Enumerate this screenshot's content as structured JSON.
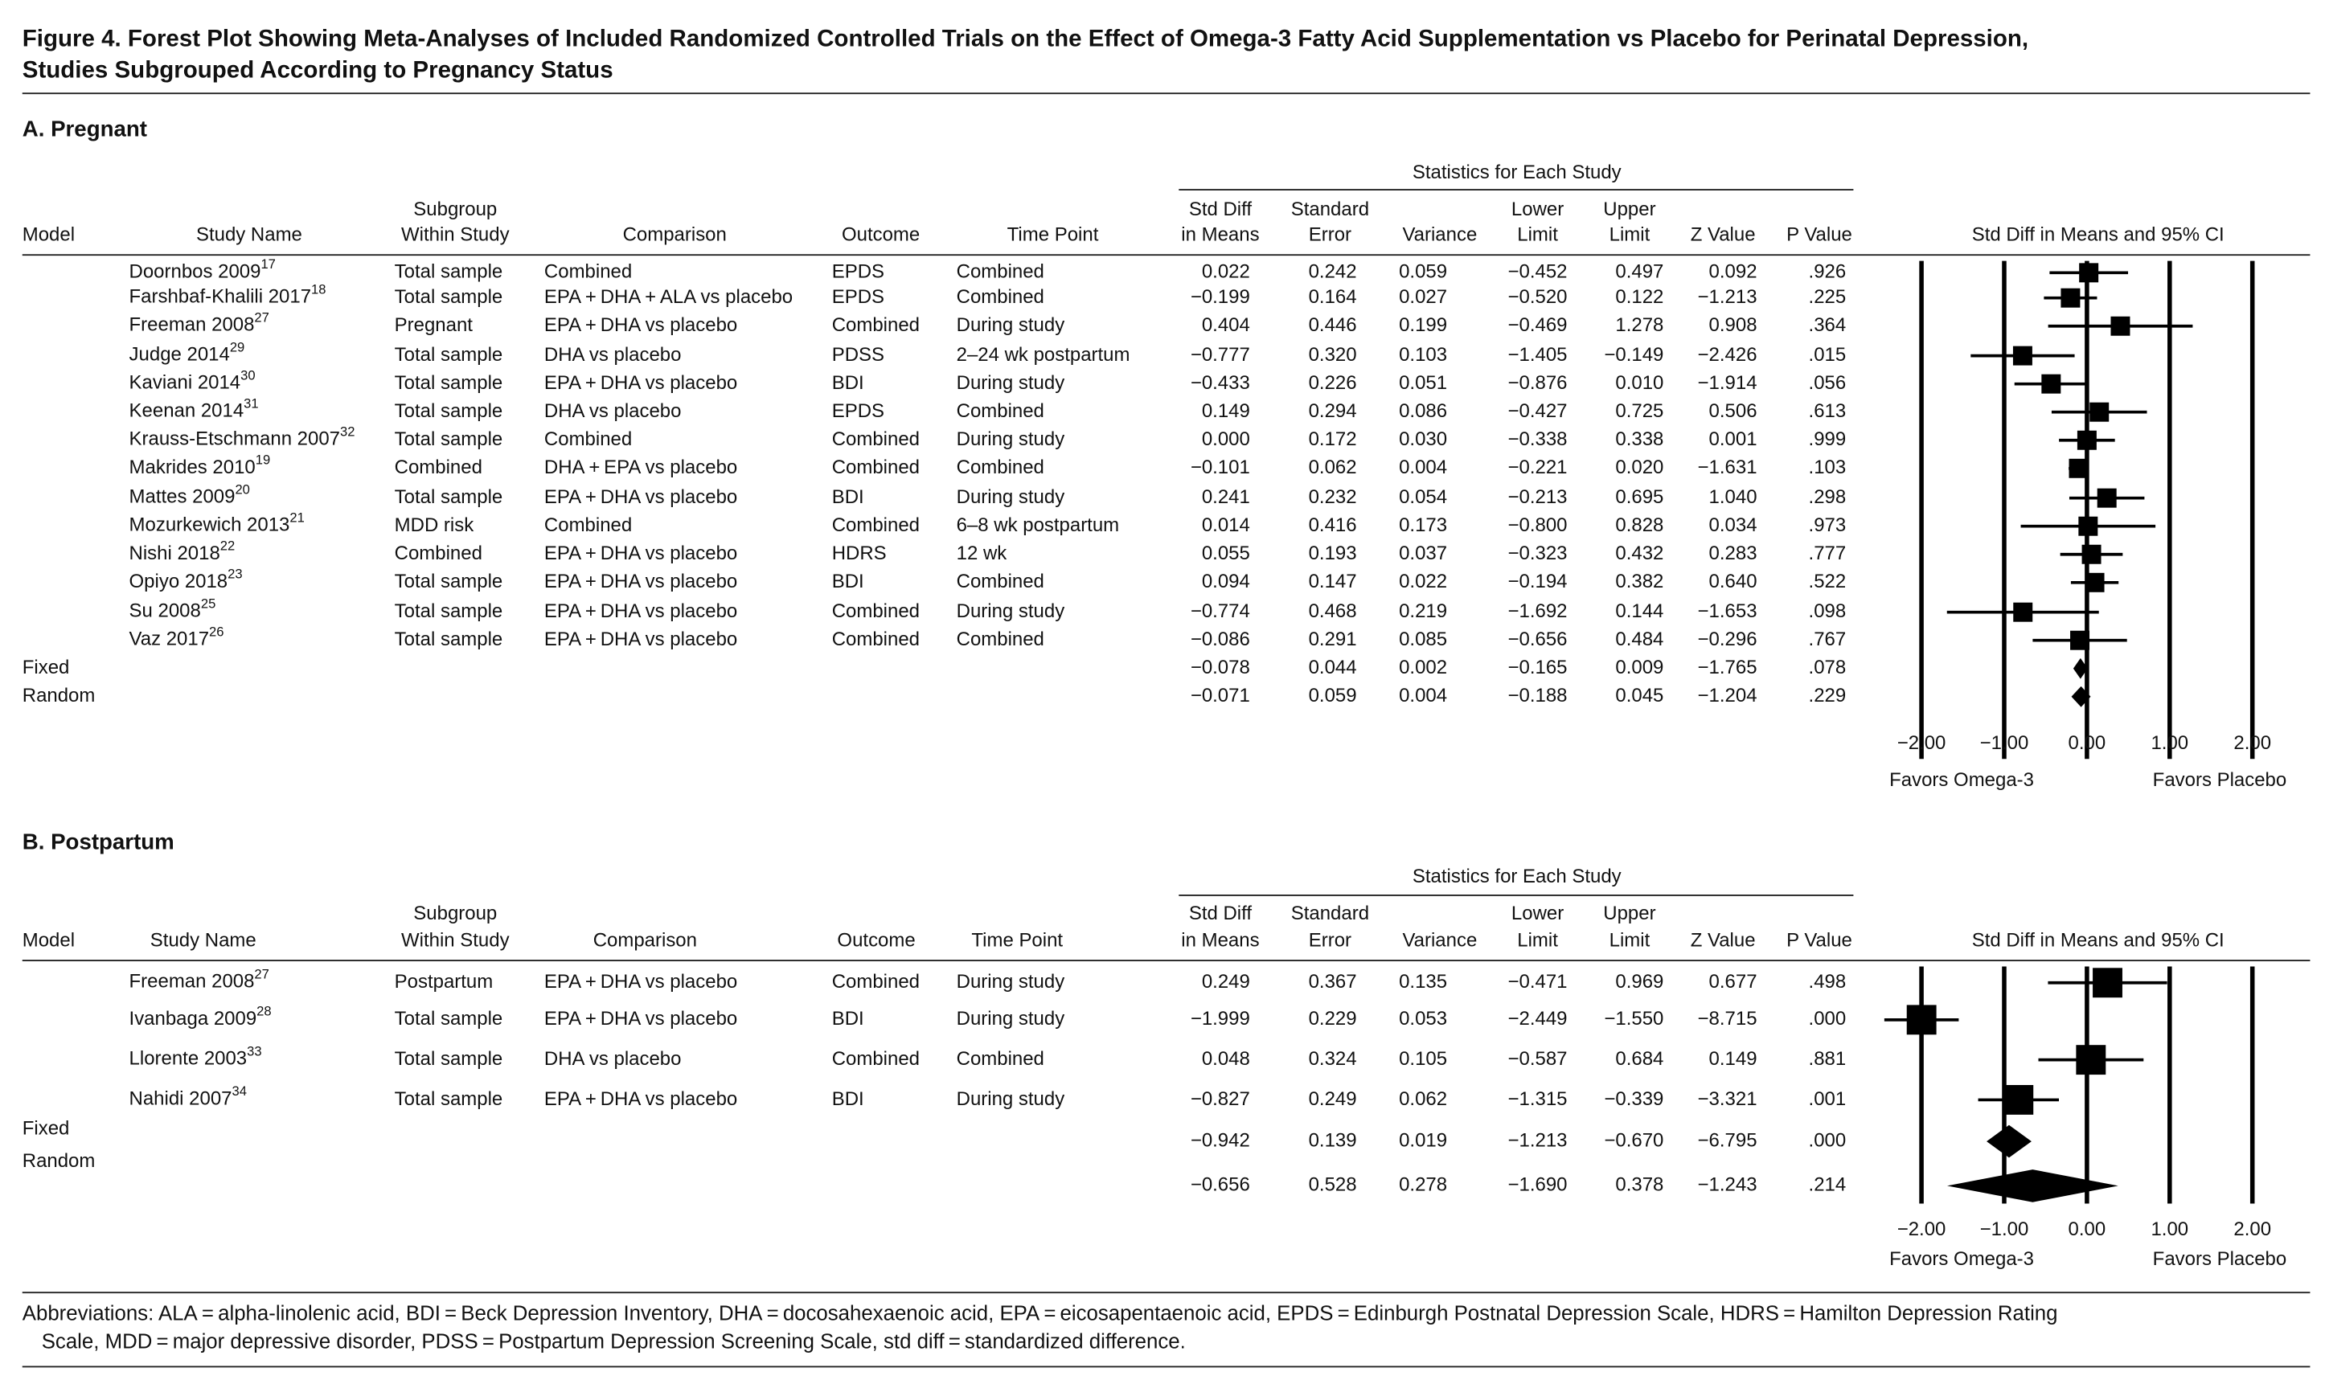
{
  "figure_title": [
    "Figure 4. Forest Plot Showing Meta-Analyses of Included Randomized Controlled Trials on the Effect of Omega-3 Fatty Acid Supplementation vs Placebo for Perinatal Depression,",
    "Studies Subgrouped According to Pregnancy Status"
  ],
  "chart_data": [
    {
      "type": "forest",
      "title": "A. Pregnant",
      "group_header": "Statistics for Each Study",
      "columns": [
        [
          "Model"
        ],
        [
          "Study Name"
        ],
        [
          "Subgroup",
          "Within Study"
        ],
        [
          "Comparison"
        ],
        [
          "Outcome"
        ],
        [
          "Time Point"
        ],
        [
          "Std Diff",
          "in Means"
        ],
        [
          "Standard",
          "Error"
        ],
        [
          "Variance"
        ],
        [
          "Lower",
          "Limit"
        ],
        [
          "Upper",
          "Limit"
        ],
        [
          "Z Value"
        ],
        [
          "P Value"
        ]
      ],
      "plot_header": "Std Diff in Means and 95% CI",
      "rows": [
        {
          "study": "Doornbos 2009",
          "ref": "17",
          "subgroup": "Total sample",
          "comparison": "Combined",
          "outcome": "EPDS",
          "time_point": "Combined",
          "cells": [
            "0.022",
            "0.242",
            "0.059",
            "−0.452",
            "0.497",
            "0.092",
            ".926"
          ],
          "std_diff": 0.022,
          "lower": -0.452,
          "upper": 0.497
        },
        {
          "study": "Farshbaf-Khalili 2017",
          "ref": "18",
          "subgroup": "Total sample",
          "comparison": "EPA + DHA + ALA vs placebo",
          "outcome": "EPDS",
          "time_point": "Combined",
          "cells": [
            "−0.199",
            "0.164",
            "0.027",
            "−0.520",
            "0.122",
            "−1.213",
            ".225"
          ],
          "std_diff": -0.199,
          "lower": -0.52,
          "upper": 0.122
        },
        {
          "study": "Freeman 2008",
          "ref": "27",
          "subgroup": "Pregnant",
          "comparison": "EPA + DHA vs placebo",
          "outcome": "Combined",
          "time_point": "During study",
          "cells": [
            "0.404",
            "0.446",
            "0.199",
            "−0.469",
            "1.278",
            "0.908",
            ".364"
          ],
          "std_diff": 0.404,
          "lower": -0.469,
          "upper": 1.278
        },
        {
          "study": "Judge 2014",
          "ref": "29",
          "subgroup": "Total sample",
          "comparison": "DHA vs placebo",
          "outcome": "PDSS",
          "time_point": "2–24 wk postpartum",
          "cells": [
            "−0.777",
            "0.320",
            "0.103",
            "−1.405",
            "−0.149",
            "−2.426",
            ".015"
          ],
          "std_diff": -0.777,
          "lower": -1.405,
          "upper": -0.149
        },
        {
          "study": "Kaviani 2014",
          "ref": "30",
          "subgroup": "Total sample",
          "comparison": "EPA + DHA vs placebo",
          "outcome": "BDI",
          "time_point": "During study",
          "cells": [
            "−0.433",
            "0.226",
            "0.051",
            "−0.876",
            "0.010",
            "−1.914",
            ".056"
          ],
          "std_diff": -0.433,
          "lower": -0.876,
          "upper": 0.01
        },
        {
          "study": "Keenan 2014",
          "ref": "31",
          "subgroup": "Total sample",
          "comparison": "DHA vs placebo",
          "outcome": "EPDS",
          "time_point": "Combined",
          "cells": [
            "0.149",
            "0.294",
            "0.086",
            "−0.427",
            "0.725",
            "0.506",
            ".613"
          ],
          "std_diff": 0.149,
          "lower": -0.427,
          "upper": 0.725
        },
        {
          "study": "Krauss-Etschmann 2007",
          "ref": "32",
          "subgroup": "Total sample",
          "comparison": "Combined",
          "outcome": "Combined",
          "time_point": "During study",
          "cells": [
            "0.000",
            "0.172",
            "0.030",
            "−0.338",
            "0.338",
            "0.001",
            ".999"
          ],
          "std_diff": 0.0,
          "lower": -0.338,
          "upper": 0.338
        },
        {
          "study": "Makrides 2010",
          "ref": "19",
          "subgroup": "Combined",
          "comparison": "DHA + EPA vs placebo",
          "outcome": "Combined",
          "time_point": "Combined",
          "cells": [
            "−0.101",
            "0.062",
            "0.004",
            "−0.221",
            "0.020",
            "−1.631",
            ".103"
          ],
          "std_diff": -0.101,
          "lower": -0.221,
          "upper": 0.02
        },
        {
          "study": "Mattes 2009",
          "ref": "20",
          "subgroup": "Total sample",
          "comparison": "EPA + DHA vs placebo",
          "outcome": "BDI",
          "time_point": "During study",
          "cells": [
            "0.241",
            "0.232",
            "0.054",
            "−0.213",
            "0.695",
            "1.040",
            ".298"
          ],
          "std_diff": 0.241,
          "lower": -0.213,
          "upper": 0.695
        },
        {
          "study": "Mozurkewich 2013",
          "ref": "21",
          "subgroup": "MDD risk",
          "comparison": "Combined",
          "outcome": "Combined",
          "time_point": "6–8 wk postpartum",
          "cells": [
            "0.014",
            "0.416",
            "0.173",
            "−0.800",
            "0.828",
            "0.034",
            ".973"
          ],
          "std_diff": 0.014,
          "lower": -0.8,
          "upper": 0.828
        },
        {
          "study": "Nishi 2018",
          "ref": "22",
          "subgroup": "Combined",
          "comparison": "EPA + DHA vs placebo",
          "outcome": "HDRS",
          "time_point": "12 wk",
          "cells": [
            "0.055",
            "0.193",
            "0.037",
            "−0.323",
            "0.432",
            "0.283",
            ".777"
          ],
          "std_diff": 0.055,
          "lower": -0.323,
          "upper": 0.432
        },
        {
          "study": "Opiyo 2018",
          "ref": "23",
          "subgroup": "Total sample",
          "comparison": "EPA + DHA vs placebo",
          "outcome": "BDI",
          "time_point": "Combined",
          "cells": [
            "0.094",
            "0.147",
            "0.022",
            "−0.194",
            "0.382",
            "0.640",
            ".522"
          ],
          "std_diff": 0.094,
          "lower": -0.194,
          "upper": 0.382
        },
        {
          "study": "Su 2008",
          "ref": "25",
          "subgroup": "Total sample",
          "comparison": "EPA + DHA vs placebo",
          "outcome": "Combined",
          "time_point": "During study",
          "cells": [
            "−0.774",
            "0.468",
            "0.219",
            "−1.692",
            "0.144",
            "−1.653",
            ".098"
          ],
          "std_diff": -0.774,
          "lower": -1.692,
          "upper": 0.144
        },
        {
          "study": "Vaz 2017",
          "ref": "26",
          "subgroup": "Total sample",
          "comparison": "EPA + DHA vs placebo",
          "outcome": "Combined",
          "time_point": "Combined",
          "cells": [
            "−0.086",
            "0.291",
            "0.085",
            "−0.656",
            "0.484",
            "−0.296",
            ".767"
          ],
          "std_diff": -0.086,
          "lower": -0.656,
          "upper": 0.484
        },
        {
          "model": "Fixed",
          "cells": [
            "−0.078",
            "0.044",
            "0.002",
            "−0.165",
            "0.009",
            "−1.765",
            ".078"
          ],
          "std_diff": -0.078,
          "lower": -0.165,
          "upper": 0.009
        },
        {
          "model": "Random",
          "cells": [
            "−0.071",
            "0.059",
            "0.004",
            "−0.188",
            "0.045",
            "−1.204",
            ".229"
          ],
          "std_diff": -0.071,
          "lower": -0.188,
          "upper": 0.045
        }
      ],
      "xlim": [
        -2.5,
        2.5
      ],
      "xticks": [
        {
          "value": -2,
          "label": "−2.00"
        },
        {
          "value": -1,
          "label": "−1.00"
        },
        {
          "value": 0,
          "label": "0.00"
        },
        {
          "value": 1,
          "label": "1.00"
        },
        {
          "value": 2,
          "label": "2.00"
        }
      ],
      "favors": [
        "Favors Omega-3",
        "Favors Placebo"
      ],
      "color": "#000000"
    },
    {
      "type": "forest",
      "title": "B. Postpartum",
      "group_header": "Statistics for Each Study",
      "columns": [
        [
          "Model"
        ],
        [
          "Study Name"
        ],
        [
          "Subgroup",
          "Within Study"
        ],
        [
          "Comparison"
        ],
        [
          "Outcome"
        ],
        [
          "Time Point"
        ],
        [
          "Std Diff",
          "in Means"
        ],
        [
          "Standard",
          "Error"
        ],
        [
          "Variance"
        ],
        [
          "Lower",
          "Limit"
        ],
        [
          "Upper",
          "Limit"
        ],
        [
          "Z Value"
        ],
        [
          "P Value"
        ]
      ],
      "plot_header": "Std Diff in Means and 95% CI",
      "rows": [
        {
          "study": "Freeman 2008",
          "ref": "27",
          "subgroup": "Postpartum",
          "comparison": "EPA + DHA vs placebo",
          "outcome": "Combined",
          "time_point": "During study",
          "cells": [
            "0.249",
            "0.367",
            "0.135",
            "−0.471",
            "0.969",
            "0.677",
            ".498"
          ],
          "std_diff": 0.249,
          "lower": -0.471,
          "upper": 0.969
        },
        {
          "study": "Ivanbaga 2009",
          "ref": "28",
          "subgroup": "Total sample",
          "comparison": "EPA + DHA vs placebo",
          "outcome": "BDI",
          "time_point": "During study",
          "cells": [
            "−1.999",
            "0.229",
            "0.053",
            "−2.449",
            "−1.550",
            "−8.715",
            ".000"
          ],
          "std_diff": -1.999,
          "lower": -2.449,
          "upper": -1.55
        },
        {
          "study": "Llorente 2003",
          "ref": "33",
          "subgroup": "Total sample",
          "comparison": "DHA vs placebo",
          "outcome": "Combined",
          "time_point": "Combined",
          "cells": [
            "0.048",
            "0.324",
            "0.105",
            "−0.587",
            "0.684",
            "0.149",
            ".881"
          ],
          "std_diff": 0.048,
          "lower": -0.587,
          "upper": 0.684
        },
        {
          "study": "Nahidi 2007",
          "ref": "34",
          "subgroup": "Total sample",
          "comparison": "EPA + DHA vs placebo",
          "outcome": "BDI",
          "time_point": "During study",
          "cells": [
            "−0.827",
            "0.249",
            "0.062",
            "−1.315",
            "−0.339",
            "−3.321",
            ".001"
          ],
          "std_diff": -0.827,
          "lower": -1.315,
          "upper": -0.339
        },
        {
          "model": "Fixed",
          "cells": [
            "−0.942",
            "0.139",
            "0.019",
            "−1.213",
            "−0.670",
            "−6.795",
            ".000"
          ],
          "std_diff": -0.942,
          "lower": -1.213,
          "upper": -0.67
        },
        {
          "model": "Random",
          "cells": [
            "−0.656",
            "0.528",
            "0.278",
            "−1.690",
            "0.378",
            "−1.243",
            ".214"
          ],
          "std_diff": -0.656,
          "lower": -1.69,
          "upper": 0.378
        }
      ],
      "xlim": [
        -2.5,
        2.5
      ],
      "xticks": [
        {
          "value": -2,
          "label": "−2.00"
        },
        {
          "value": -1,
          "label": "−1.00"
        },
        {
          "value": 0,
          "label": "0.00"
        },
        {
          "value": 1,
          "label": "1.00"
        },
        {
          "value": 2,
          "label": "2.00"
        }
      ],
      "favors": [
        "Favors Omega-3",
        "Favors Placebo"
      ],
      "color": "#000000"
    }
  ],
  "abbreviations": [
    "Abbreviations: ALA = alpha-linolenic acid, BDI = Beck Depression Inventory, DHA = docosahexaenoic acid, EPA = eicosapentaenoic acid, EPDS = Edinburgh Postnatal Depression Scale, HDRS = Hamilton Depression Rating",
    "Scale, MDD = major depressive disorder, PDSS = Postpartum Depression Screening Scale, std diff = standardized difference."
  ]
}
